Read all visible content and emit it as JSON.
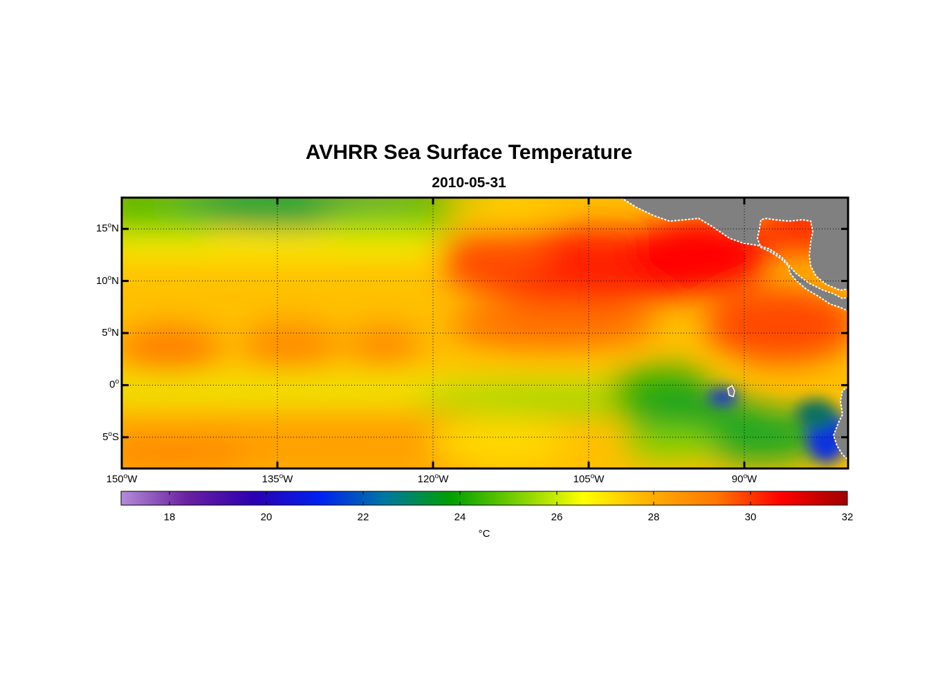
{
  "title": "AVHRR Sea Surface Temperature",
  "subtitle": "2010-05-31",
  "y_axis": {
    "ticks": [
      {
        "value": 15,
        "num": "15",
        "deg": "o",
        "hem": "N"
      },
      {
        "value": 10,
        "num": "10",
        "deg": "o",
        "hem": "N"
      },
      {
        "value": 5,
        "num": "5",
        "deg": "o",
        "hem": "N"
      },
      {
        "value": 0,
        "num": "0",
        "deg": "o",
        "hem": ""
      },
      {
        "value": -5,
        "num": "5",
        "deg": "o",
        "hem": "S"
      }
    ],
    "range": [
      -8,
      18
    ]
  },
  "x_axis": {
    "ticks": [
      {
        "value": -150,
        "num": "150",
        "deg": "o",
        "hem": "W"
      },
      {
        "value": -135,
        "num": "135",
        "deg": "o",
        "hem": "W"
      },
      {
        "value": -120,
        "num": "120",
        "deg": "o",
        "hem": "W"
      },
      {
        "value": -105,
        "num": "105",
        "deg": "o",
        "hem": "W"
      },
      {
        "value": -90,
        "num": "90",
        "deg": "o",
        "hem": "W"
      }
    ],
    "range": [
      -150,
      -80
    ]
  },
  "colorbar": {
    "min": 17,
    "max": 32,
    "ticks": [
      "18",
      "20",
      "22",
      "24",
      "26",
      "28",
      "30",
      "32"
    ],
    "unit_label": "°C",
    "stops": [
      "#b48cd8",
      "#6a20a0",
      "#2c00b0",
      "#0020f0",
      "#0078a0",
      "#00a000",
      "#7ad000",
      "#ffff00",
      "#ffb000",
      "#ff7800",
      "#ff0000",
      "#a00000"
    ]
  },
  "land_color": "#808080"
}
